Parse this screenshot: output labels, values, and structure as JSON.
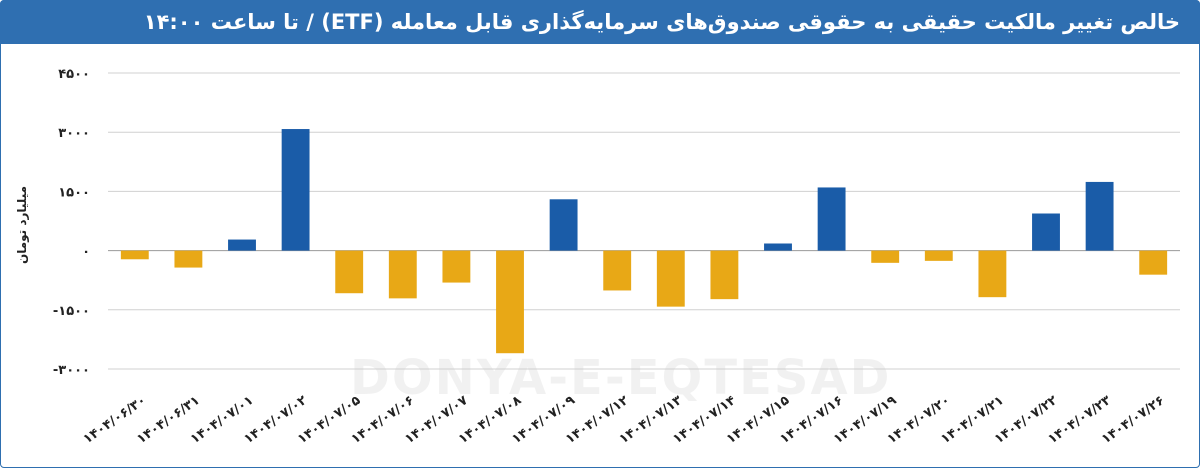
{
  "title": "خالص تغییر مالکیت حقیقی به حقوقی صندوق‌های سرمایه‌گذاری قابل معامله (ETF) / تا ساعت ۱۴:۰۰",
  "watermark": "DONYA-E-EQTESAD",
  "colors": {
    "positive": "#1a5ca8",
    "negative": "#e8a816",
    "header": "#2f6fb1",
    "grid": "#d0d0d0"
  },
  "chart_data": {
    "type": "bar",
    "title": "خالص تغییر مالکیت حقیقی به حقوقی صندوق‌های سرمایه‌گذاری قابل معامله (ETF) / تا ساعت ۱۴:۰۰",
    "xlabel": "",
    "ylabel": "میلیارد تومان",
    "ylim": [
      -3000,
      4500
    ],
    "yticks": [
      4500,
      3000,
      1500,
      0,
      -1500,
      -3000
    ],
    "ytick_labels": [
      "۴۵۰۰",
      "۳۰۰۰",
      "۱۵۰۰",
      "۰",
      "-۱۵۰۰",
      "-۳۰۰۰"
    ],
    "grid": true,
    "categories": [
      "۱۴۰۴/۰۶/۳۰",
      "۱۴۰۴/۰۶/۳۱",
      "۱۴۰۴/۰۷/۰۱",
      "۱۴۰۴/۰۷/۰۲",
      "۱۴۰۴/۰۷/۰۵",
      "۱۴۰۴/۰۷/۰۶",
      "۱۴۰۴/۰۷/۰۷",
      "۱۴۰۴/۰۷/۰۸",
      "۱۴۰۴/۰۷/۰۹",
      "۱۴۰۴/۰۷/۱۲",
      "۱۴۰۴/۰۷/۱۳",
      "۱۴۰۴/۰۷/۱۴",
      "۱۴۰۴/۰۷/۱۵",
      "۱۴۰۴/۰۷/۱۶",
      "۱۴۰۴/۰۷/۱۹",
      "۱۴۰۴/۰۷/۲۰",
      "۱۴۰۴/۰۷/۲۱",
      "۱۴۰۴/۰۷/۲۲",
      "۱۴۰۴/۰۷/۲۳",
      "۱۴۰۴/۰۷/۲۶"
    ],
    "values": [
      -220,
      -430,
      280,
      3080,
      -1080,
      -1210,
      -810,
      -2600,
      1300,
      -1010,
      -1420,
      -1230,
      180,
      1600,
      -310,
      -260,
      -1180,
      940,
      1740,
      -610
    ]
  }
}
